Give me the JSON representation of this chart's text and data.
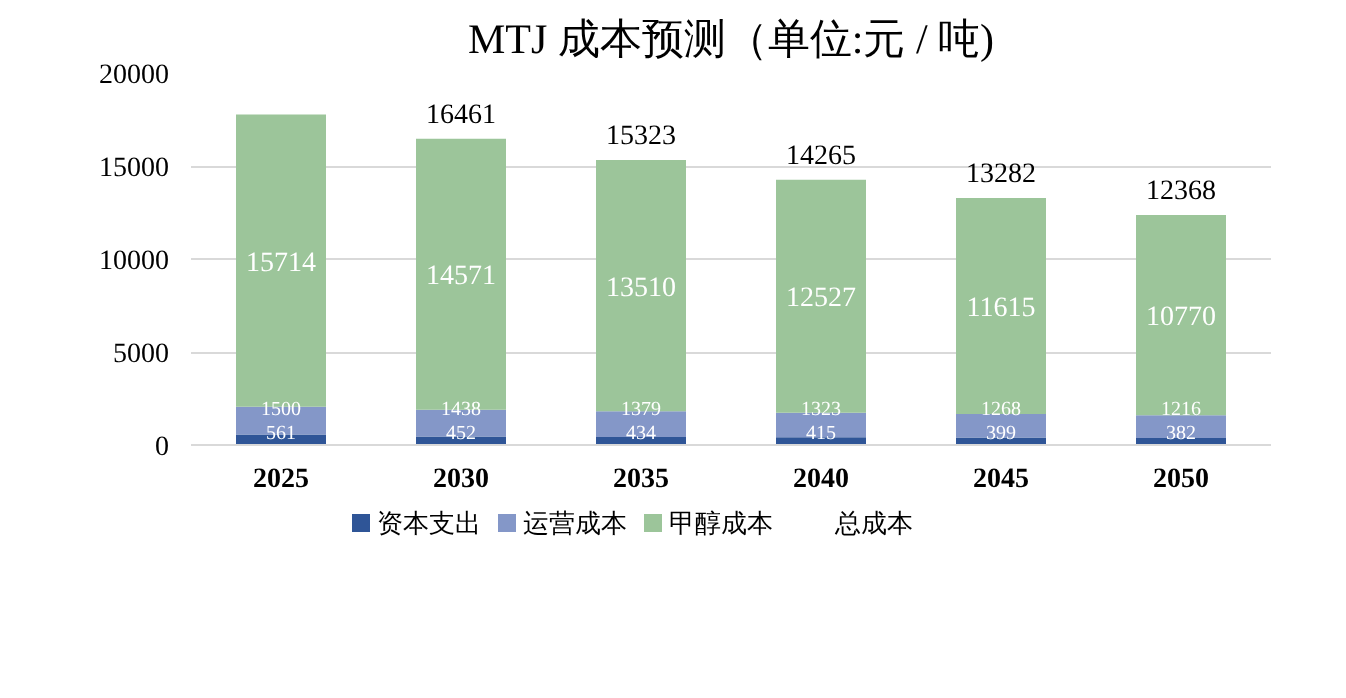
{
  "chart_data": {
    "type": "bar",
    "title": "MTJ 成本预测（单位:元 / 吨)",
    "stacked": true,
    "categories": [
      "2025",
      "2030",
      "2035",
      "2040",
      "2045",
      "2050"
    ],
    "series": [
      {
        "name": "资本支出",
        "color": "#2f5597",
        "values": [
          561,
          452,
          434,
          415,
          399,
          382
        ]
      },
      {
        "name": "运营成本",
        "color": "#8497c8",
        "values": [
          1500,
          1438,
          1379,
          1323,
          1268,
          1216
        ]
      },
      {
        "name": "甲醇成本",
        "color": "#9cc59a",
        "values": [
          15714,
          14571,
          13510,
          12527,
          11615,
          10770
        ]
      }
    ],
    "totals": [
      null,
      "16461",
      "15323",
      "14265",
      "13282",
      "12368"
    ],
    "annotations": [
      "总成本"
    ],
    "data_labels": true,
    "ylim": [
      0,
      20000
    ],
    "yticks": [
      0,
      5000,
      10000,
      15000,
      20000
    ],
    "grid": "y",
    "legend": "bottom"
  }
}
